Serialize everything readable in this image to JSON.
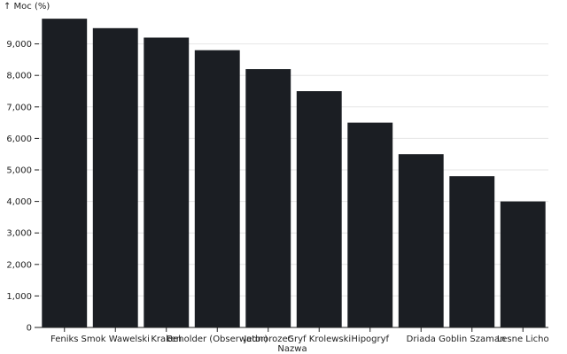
{
  "chart_data": {
    "type": "bar",
    "ylabel": "↑ Moc (%)",
    "xlabel": "Nazwa",
    "categories": [
      "Feniks",
      "Smok Wawelski",
      "Kraken",
      "Beholder (Obserwator)",
      "Jednorozec",
      "Gryf Krolewski",
      "Hipogryf",
      "Driada",
      "Goblin Szaman",
      "Lesne Licho"
    ],
    "values": [
      9800,
      9500,
      9200,
      8800,
      8200,
      7500,
      6500,
      5500,
      4800,
      4000
    ],
    "ylim": [
      0,
      10000
    ],
    "yticks": [
      0,
      1000,
      2000,
      3000,
      4000,
      5000,
      6000,
      7000,
      8000,
      9000
    ],
    "ytick_labels": [
      "0",
      "1,000",
      "2,000",
      "3,000",
      "4,000",
      "5,000",
      "6,000",
      "7,000",
      "8,000",
      "9,000"
    ],
    "bar_color": "#1b1e23",
    "grid": true
  }
}
